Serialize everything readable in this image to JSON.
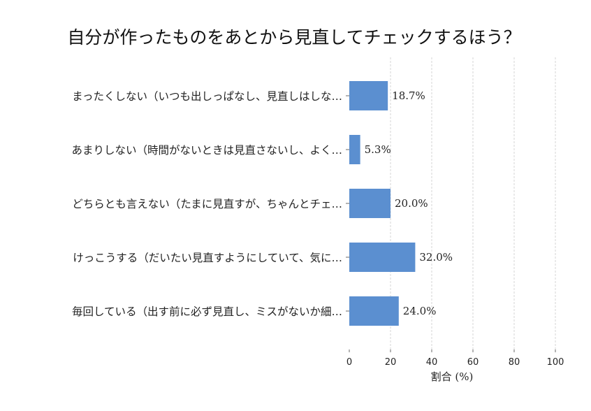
{
  "chart_data": {
    "type": "bar",
    "orientation": "horizontal",
    "title": "自分が作ったものをあとから見直してチェックするほう？",
    "categories": [
      "まったくしない（いつも出しっぱなし、見直しはしな…",
      "あまりしない（時間がないときは見直さないし、よく…",
      "どちらとも言えない（たまに見直すが、ちゃんとチェ…",
      "けっこうする（だいたい見直すようにしていて、気に…",
      "毎回している（出す前に必ず見直し、ミスがないか細…"
    ],
    "values": [
      18.7,
      5.3,
      20.0,
      32.0,
      24.0
    ],
    "value_labels": [
      "18.7%",
      "5.3%",
      "20.0%",
      "32.0%",
      "24.0%"
    ],
    "xlabel": "割合 (%)",
    "ylabel": "",
    "xlim": [
      0,
      100
    ],
    "xticks": [
      0,
      20,
      40,
      60,
      80,
      100
    ],
    "xtick_labels": [
      "0",
      "20",
      "40",
      "60",
      "80",
      "100"
    ],
    "grid": "x-dashed",
    "bar_color": "#5b8fd0"
  }
}
